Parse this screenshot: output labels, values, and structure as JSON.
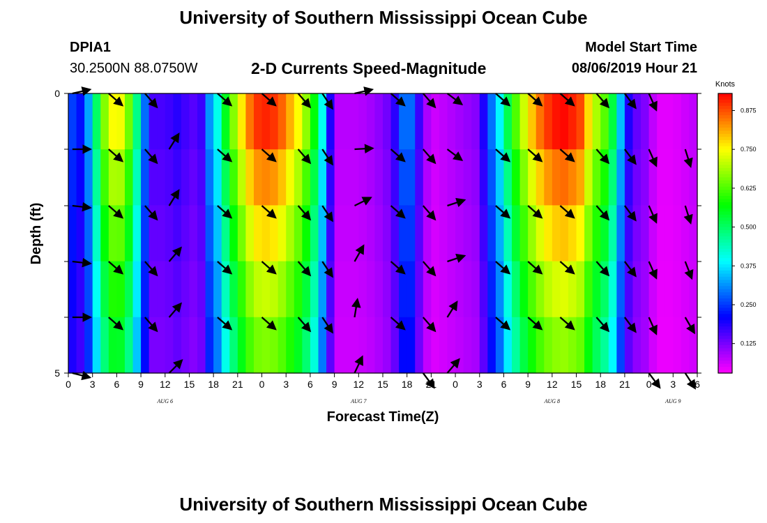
{
  "page": {
    "title_top": "University of Southern Mississippi Ocean Cube",
    "title_bottom": "University of Southern Mississippi Ocean Cube",
    "station_id": "DPIA1",
    "coords": "30.2500N 88.0750W",
    "plot_title": "2-D Currents Speed-Magnitude",
    "model_start_label": "Model Start Time",
    "model_start_value": "08/06/2019 Hour 21"
  },
  "chart_data": {
    "type": "heatmap",
    "title": "2-D Currents Speed-Magnitude",
    "xlabel": "Forecast Time(Z)",
    "ylabel": "Depth (ft)",
    "x_ticks": [
      "0",
      "3",
      "6",
      "9",
      "12",
      "15",
      "18",
      "21",
      "0",
      "3",
      "6",
      "9",
      "12",
      "15",
      "18",
      "21",
      "0",
      "3",
      "6",
      "9",
      "12",
      "15",
      "18",
      "21",
      "0",
      "3",
      "6"
    ],
    "date_labels": [
      {
        "text": "AUG 6",
        "tick_index": 4
      },
      {
        "text": "AUG 7",
        "tick_index": 12
      },
      {
        "text": "AUG 8",
        "tick_index": 20
      },
      {
        "text": "AUG 9",
        "tick_index": 25
      }
    ],
    "y_ticks": [
      "0",
      "5"
    ],
    "ylim": [
      0,
      5
    ],
    "x_range_hours": [
      0,
      78
    ],
    "colorbar": {
      "label": "Knots",
      "ticks": [
        0.125,
        0.25,
        0.375,
        0.5,
        0.625,
        0.75,
        0.875
      ],
      "range": [
        0.03,
        0.93
      ]
    },
    "depth_layers": 5,
    "surface_profile": [
      [
        0,
        0.27
      ],
      [
        1.5,
        0.22
      ],
      [
        3,
        0.38
      ],
      [
        4,
        0.62
      ],
      [
        6,
        0.79
      ],
      [
        8,
        0.6
      ],
      [
        9,
        0.35
      ],
      [
        10.5,
        0.16
      ],
      [
        12,
        0.16
      ],
      [
        14,
        0.19
      ],
      [
        15,
        0.14
      ],
      [
        16.5,
        0.17
      ],
      [
        17,
        0.3
      ],
      [
        18,
        0.33
      ],
      [
        19.5,
        0.55
      ],
      [
        21,
        0.72
      ],
      [
        23,
        0.89
      ],
      [
        25,
        0.91
      ],
      [
        26.5,
        0.86
      ],
      [
        28.5,
        0.75
      ],
      [
        30,
        0.63
      ],
      [
        31,
        0.5
      ],
      [
        32,
        0.3
      ],
      [
        33,
        0.08
      ],
      [
        36,
        0.08
      ],
      [
        38,
        0.1
      ],
      [
        40,
        0.14
      ],
      [
        41,
        0.22
      ],
      [
        42,
        0.35
      ],
      [
        43,
        0.22
      ],
      [
        44,
        0.12
      ],
      [
        45,
        0.06
      ],
      [
        47,
        0.08
      ],
      [
        49,
        0.1
      ],
      [
        51,
        0.12
      ],
      [
        52,
        0.26
      ],
      [
        53,
        0.32
      ],
      [
        55,
        0.58
      ],
      [
        57,
        0.76
      ],
      [
        59,
        0.88
      ],
      [
        61,
        0.93
      ],
      [
        62,
        0.92
      ],
      [
        63.5,
        0.88
      ],
      [
        65,
        0.72
      ],
      [
        67,
        0.6
      ],
      [
        68,
        0.45
      ],
      [
        69,
        0.24
      ],
      [
        70,
        0.14
      ],
      [
        71,
        0.14
      ],
      [
        72,
        0.1
      ],
      [
        73,
        0.05
      ],
      [
        75,
        0.05
      ],
      [
        78,
        0.08
      ]
    ],
    "depth_factors": [
      1.0,
      0.92,
      0.85,
      0.78,
      0.72
    ],
    "vectors": [
      {
        "t": 0.5,
        "levels": [
          [
            0.45,
            -0.1
          ],
          [
            0.45,
            0.0
          ],
          [
            0.45,
            0.05
          ],
          [
            0.45,
            0.05
          ],
          [
            0.45,
            0.0
          ],
          [
            0.4,
            0.1
          ]
        ]
      },
      {
        "t": 5,
        "levels": [
          [
            0.8,
            0.7
          ],
          [
            0.8,
            0.7
          ],
          [
            0.8,
            0.7
          ],
          [
            0.8,
            0.7
          ],
          [
            0.8,
            0.7
          ],
          null
        ]
      },
      {
        "t": 9.5,
        "levels": [
          [
            0.7,
            0.8
          ],
          [
            0.7,
            0.8
          ],
          [
            0.7,
            0.8
          ],
          [
            0.7,
            0.8
          ],
          [
            0.7,
            0.8
          ],
          null
        ]
      },
      {
        "t": 12.5,
        "levels": [
          null,
          [
            0.5,
            -0.8
          ],
          [
            0.5,
            -0.8
          ],
          [
            0.6,
            -0.7
          ],
          [
            0.6,
            -0.7
          ],
          [
            0.7,
            -0.7
          ]
        ]
      },
      {
        "t": 18.5,
        "levels": [
          [
            0.8,
            0.7
          ],
          [
            0.8,
            0.7
          ],
          [
            0.8,
            0.7
          ],
          [
            0.8,
            0.7
          ],
          [
            0.8,
            0.7
          ],
          null
        ]
      },
      {
        "t": 24,
        "levels": [
          [
            0.8,
            0.7
          ],
          [
            0.8,
            0.7
          ],
          [
            0.8,
            0.7
          ],
          [
            0.8,
            0.7
          ],
          [
            0.8,
            0.7
          ],
          null
        ]
      },
      {
        "t": 28.5,
        "levels": [
          [
            0.7,
            0.8
          ],
          [
            0.7,
            0.8
          ],
          [
            0.7,
            0.8
          ],
          [
            0.7,
            0.8
          ],
          [
            0.7,
            0.8
          ],
          null
        ]
      },
      {
        "t": 31.5,
        "levels": [
          [
            0.6,
            0.9
          ],
          [
            0.6,
            0.9
          ],
          [
            0.6,
            0.9
          ],
          [
            0.6,
            0.9
          ],
          [
            0.6,
            0.9
          ],
          null
        ]
      },
      {
        "t": 35.5,
        "levels": [
          [
            0.9,
            -0.2
          ],
          [
            0.9,
            -0.05
          ],
          [
            0.8,
            -0.4
          ],
          [
            0.45,
            -0.8
          ],
          [
            0.15,
            -0.95
          ],
          [
            0.4,
            -0.85
          ]
        ]
      },
      {
        "t": 40,
        "levels": [
          [
            0.8,
            0.7
          ],
          [
            0.8,
            0.7
          ],
          [
            0.8,
            0.7
          ],
          [
            0.8,
            0.7
          ],
          [
            0.8,
            0.7
          ],
          null
        ]
      },
      {
        "t": 44,
        "levels": [
          [
            0.7,
            0.8
          ],
          [
            0.7,
            0.8
          ],
          [
            0.7,
            0.8
          ],
          [
            0.7,
            0.8
          ],
          [
            0.7,
            0.8
          ],
          [
            0.6,
            0.8
          ]
        ]
      },
      {
        "t": 47,
        "levels": [
          [
            0.8,
            0.6
          ],
          [
            0.8,
            0.6
          ],
          [
            0.9,
            -0.3
          ],
          [
            0.9,
            -0.3
          ],
          [
            0.5,
            -0.8
          ],
          [
            0.6,
            -0.7
          ]
        ]
      },
      {
        "t": 53,
        "levels": [
          [
            0.8,
            0.7
          ],
          [
            0.8,
            0.7
          ],
          [
            0.8,
            0.7
          ],
          [
            0.8,
            0.7
          ],
          [
            0.8,
            0.7
          ],
          null
        ]
      },
      {
        "t": 57,
        "levels": [
          [
            0.8,
            0.7
          ],
          [
            0.8,
            0.7
          ],
          [
            0.8,
            0.7
          ],
          [
            0.8,
            0.7
          ],
          [
            0.8,
            0.7
          ],
          null
        ]
      },
      {
        "t": 61,
        "levels": [
          [
            0.8,
            0.7
          ],
          [
            0.8,
            0.7
          ],
          [
            0.8,
            0.7
          ],
          [
            0.8,
            0.7
          ],
          [
            0.8,
            0.7
          ],
          null
        ]
      },
      {
        "t": 65.5,
        "levels": [
          [
            0.7,
            0.8
          ],
          [
            0.7,
            0.8
          ],
          [
            0.7,
            0.8
          ],
          [
            0.7,
            0.8
          ],
          [
            0.7,
            0.8
          ],
          null
        ]
      },
      {
        "t": 69,
        "levels": [
          [
            0.6,
            0.8
          ],
          [
            0.6,
            0.8
          ],
          [
            0.6,
            0.8
          ],
          [
            0.6,
            0.8
          ],
          [
            0.6,
            0.8
          ],
          null
        ]
      },
      {
        "t": 72,
        "levels": [
          [
            0.4,
            0.9
          ],
          [
            0.4,
            0.9
          ],
          [
            0.4,
            0.9
          ],
          [
            0.4,
            0.9
          ],
          [
            0.4,
            0.9
          ],
          [
            0.6,
            0.8
          ]
        ]
      },
      {
        "t": 76.5,
        "levels": [
          null,
          [
            0.3,
            0.95
          ],
          [
            0.3,
            0.95
          ],
          [
            0.35,
            0.9
          ],
          [
            0.5,
            0.85
          ],
          [
            0.55,
            0.85
          ]
        ]
      }
    ]
  }
}
